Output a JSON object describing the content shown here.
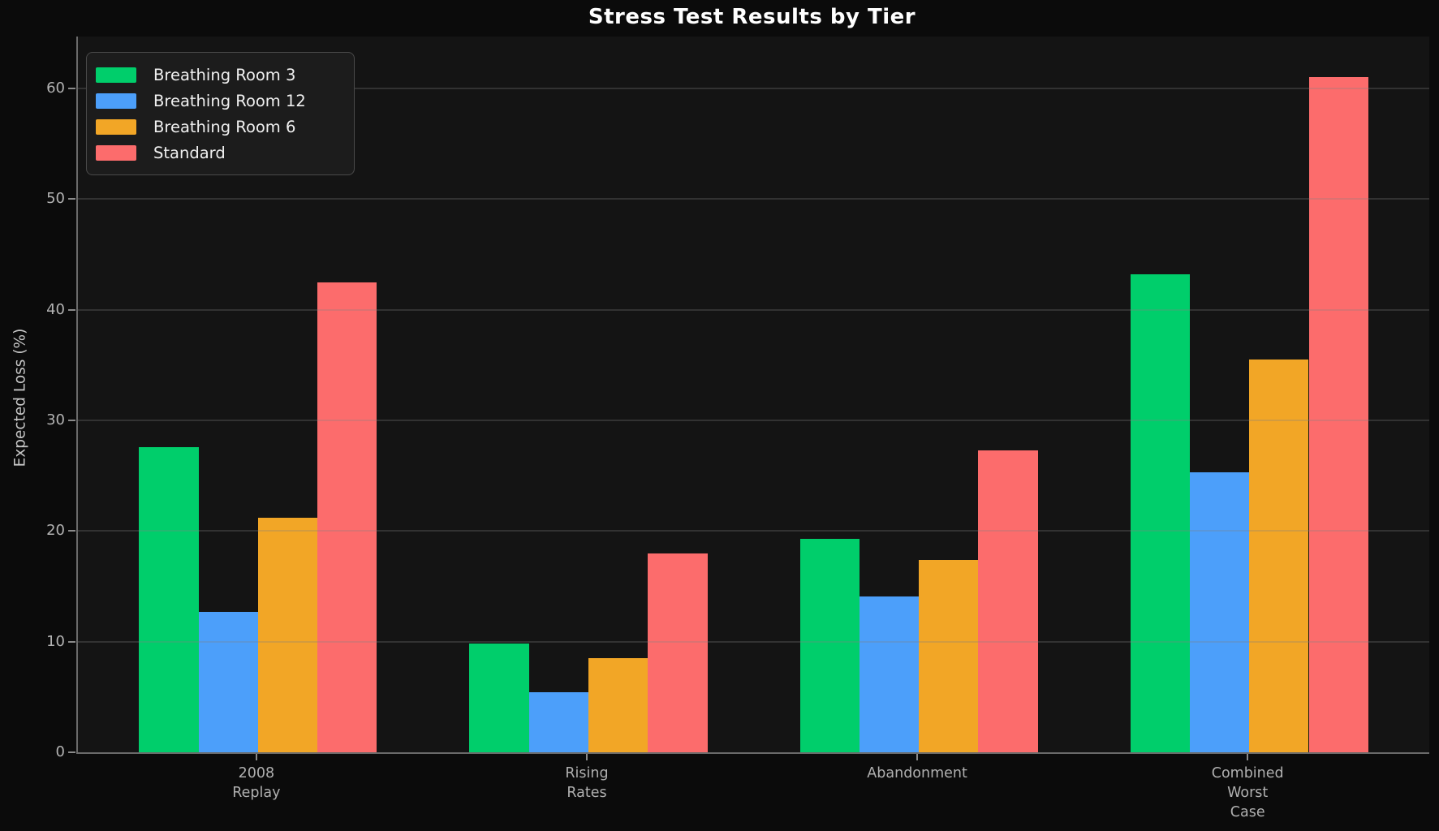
{
  "title": "Stress Test Results by Tier",
  "theme": {
    "background": "#0b0b0b",
    "axes_background": "#141414",
    "grid_color": "#4a4a4a",
    "spine_color": "#6a6a6a",
    "tick_text_color": "#b3b3b3",
    "title_color": "#ffffff",
    "legend_background": "#1c1c1c",
    "legend_border": "#4a4a4a"
  },
  "chart_data": {
    "type": "bar",
    "title": "Stress Test Results by Tier",
    "xlabel": "",
    "ylabel": "Expected Loss (%)",
    "categories": [
      [
        "2008",
        "Replay"
      ],
      [
        "Rising",
        "Rates"
      ],
      [
        "Abandonment"
      ],
      [
        "Combined",
        "Worst",
        "Case"
      ]
    ],
    "series": [
      {
        "name": "Breathing Room 3",
        "color": "#00ce6b",
        "values": [
          27.6,
          9.8,
          19.3,
          43.2
        ]
      },
      {
        "name": "Breathing Room 12",
        "color": "#4c9ffa",
        "values": [
          12.7,
          5.4,
          14.1,
          25.3
        ]
      },
      {
        "name": "Breathing Room 6",
        "color": "#f2a626",
        "values": [
          21.2,
          8.5,
          17.4,
          35.5
        ]
      },
      {
        "name": "Standard",
        "color": "#fc6c6c",
        "values": [
          42.5,
          18.0,
          27.3,
          61.0
        ]
      }
    ],
    "yticks": [
      0,
      10,
      20,
      30,
      40,
      50,
      60
    ],
    "ylim": [
      0,
      64.7
    ],
    "grid": true,
    "legend_position": "upper-left"
  }
}
